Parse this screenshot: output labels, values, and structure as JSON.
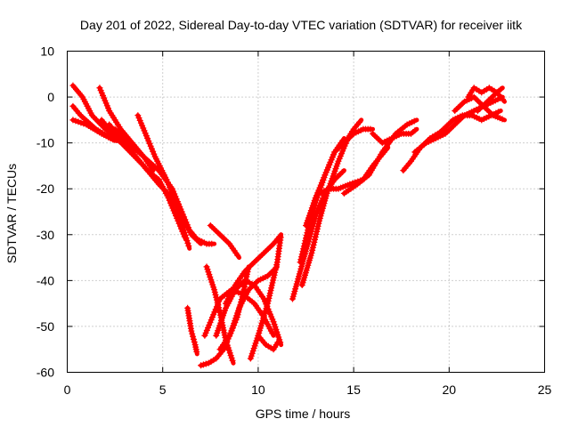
{
  "chart_data": {
    "type": "scatter",
    "title": "Day 201 of 2022, Sidereal Day-to-day VTEC variation (SDTVAR) for receiver iitk",
    "xlabel": "GPS time / hours",
    "ylabel": "SDTVAR / TECUs",
    "xlim": [
      0,
      25
    ],
    "ylim": [
      -60,
      10
    ],
    "xticks": [
      "0",
      "5",
      "10",
      "15",
      "20",
      "25"
    ],
    "yticks": [
      "10",
      "0",
      "-10",
      "-20",
      "-30",
      "-40",
      "-50",
      "-60"
    ],
    "grid": true,
    "marker": "plus",
    "color": "#ff0000",
    "series": [
      {
        "x": [
          0.3,
          0.8,
          1.3,
          2.0,
          2.6,
          3.2
        ],
        "y": [
          2.5,
          0,
          -4,
          -7,
          -9,
          -11
        ]
      },
      {
        "x": [
          0.3,
          0.7,
          1.5,
          2.3,
          3.0
        ],
        "y": [
          -2,
          -4,
          -7,
          -9,
          -10
        ]
      },
      {
        "x": [
          0.3,
          1.0,
          1.8,
          2.5
        ],
        "y": [
          -5,
          -6,
          -8,
          -9.5
        ]
      },
      {
        "x": [
          1.7,
          2.2,
          2.8,
          3.4,
          4.0,
          4.5
        ],
        "y": [
          2,
          -3,
          -7,
          -10,
          -13,
          -16
        ]
      },
      {
        "x": [
          2.5,
          3.2,
          4.0,
          4.8,
          5.5,
          6.0,
          6.4,
          6.8,
          7.3,
          7.7
        ],
        "y": [
          -7,
          -10,
          -13,
          -16,
          -20,
          -25,
          -29,
          -31,
          -32,
          -32
        ]
      },
      {
        "x": [
          1.8,
          2.6,
          3.3,
          4.0,
          4.8,
          5.5,
          6.0,
          6.5,
          7.0
        ],
        "y": [
          -5,
          -9,
          -12,
          -15,
          -19,
          -22,
          -26,
          -30,
          -32
        ]
      },
      {
        "x": [
          2.2,
          3.0,
          3.6,
          4.2,
          4.8,
          5.3,
          5.8,
          6.2
        ],
        "y": [
          -6,
          -10,
          -13,
          -16,
          -18,
          -22,
          -27,
          -31
        ]
      },
      {
        "x": [
          3.7,
          4.2,
          4.6,
          5.2,
          5.7,
          6.1,
          6.4
        ],
        "y": [
          -4,
          -9,
          -13,
          -18,
          -23,
          -29,
          -33
        ]
      },
      {
        "x": [
          7.5,
          8.0,
          8.5,
          9.0
        ],
        "y": [
          -28,
          -30,
          -32,
          -35
        ]
      },
      {
        "x": [
          6.3,
          6.5,
          6.7,
          6.8
        ],
        "y": [
          -46,
          -51,
          -54,
          -56
        ]
      },
      {
        "x": [
          7.0,
          7.4,
          7.8,
          8.2,
          8.6,
          9.0,
          9.5,
          10.0,
          10.5,
          11.0
        ],
        "y": [
          -58.5,
          -58,
          -57,
          -55,
          -51,
          -46,
          -42,
          -40,
          -39,
          -37
        ]
      },
      {
        "x": [
          7.3,
          7.7,
          8.0,
          8.3,
          8.7
        ],
        "y": [
          -37,
          -42,
          -47,
          -53,
          -58
        ]
      },
      {
        "x": [
          7.2,
          7.6,
          8.0,
          8.6,
          9.2,
          9.8,
          10.3,
          10.8
        ],
        "y": [
          -52,
          -48,
          -44,
          -42,
          -43,
          -45,
          -48,
          -52
        ]
      },
      {
        "x": [
          7.8,
          8.3,
          8.8,
          9.3,
          9.8,
          10.3,
          10.8,
          11.2
        ],
        "y": [
          -52,
          -46,
          -42,
          -40,
          -41,
          -44,
          -49,
          -54
        ]
      },
      {
        "x": [
          8.3,
          8.8,
          9.3,
          9.8,
          10.3,
          10.8,
          11.2
        ],
        "y": [
          -45,
          -41,
          -38,
          -36,
          -34,
          -32,
          -30
        ]
      },
      {
        "x": [
          8.0,
          8.5,
          8.9,
          9.2,
          9.5
        ],
        "y": [
          -55,
          -52,
          -48,
          -43,
          -37
        ]
      },
      {
        "x": [
          9.6,
          10.0,
          10.5,
          11.0,
          11.2
        ],
        "y": [
          -57,
          -52,
          -45,
          -36,
          -30
        ]
      },
      {
        "x": [
          10.0,
          10.4,
          10.8,
          11.1
        ],
        "y": [
          -52,
          -54,
          -55,
          -53
        ]
      },
      {
        "x": [
          11.8,
          12.2,
          12.6,
          13.0,
          13.5,
          14.0,
          14.5
        ],
        "y": [
          -44,
          -38,
          -32,
          -26,
          -21,
          -18,
          -16
        ]
      },
      {
        "x": [
          12.2,
          12.6,
          13.0,
          13.5,
          14.0,
          14.5,
          15.0,
          15.5,
          16.0
        ],
        "y": [
          -36,
          -29,
          -23,
          -17,
          -12,
          -10,
          -8,
          -7,
          -7
        ]
      },
      {
        "x": [
          12.5,
          13.0,
          13.5,
          14.0,
          14.5
        ],
        "y": [
          -28,
          -22,
          -17,
          -12,
          -9
        ]
      },
      {
        "x": [
          12.3,
          12.8,
          13.2,
          13.6,
          14.2,
          14.7,
          15.0,
          15.4
        ],
        "y": [
          -41,
          -34,
          -27,
          -21,
          -14,
          -9,
          -7,
          -5
        ]
      },
      {
        "x": [
          13.2,
          13.7,
          14.2,
          14.8,
          15.5,
          16.0,
          16.4,
          16.8
        ],
        "y": [
          -21,
          -20,
          -20,
          -19,
          -18,
          -15,
          -13,
          -11
        ]
      },
      {
        "x": [
          14.5,
          15.2,
          15.8,
          16.5,
          17.2,
          17.8,
          18.3
        ],
        "y": [
          -21,
          -19,
          -17,
          -12,
          -8,
          -6,
          -5
        ]
      },
      {
        "x": [
          16.0,
          16.5,
          17.0,
          17.5,
          18.0,
          18.3
        ],
        "y": [
          -8,
          -10,
          -9,
          -8,
          -8,
          -7
        ]
      },
      {
        "x": [
          17.6,
          18.0,
          18.5,
          19.0,
          19.4,
          19.8
        ],
        "y": [
          -16,
          -14,
          -11,
          -9,
          -8,
          -7
        ]
      },
      {
        "x": [
          18.2,
          18.8,
          19.3,
          19.8,
          20.3,
          20.8,
          21.3,
          21.8,
          22.3,
          22.8
        ],
        "y": [
          -12,
          -10,
          -9,
          -8,
          -6,
          -4,
          -3,
          -2,
          -1,
          0
        ]
      },
      {
        "x": [
          19.2,
          19.7,
          20.2,
          20.7,
          21.2,
          21.7,
          22.2,
          22.7
        ],
        "y": [
          -9,
          -7,
          -5,
          -4,
          -4,
          -5,
          -4,
          -3
        ]
      },
      {
        "x": [
          20.3,
          20.8,
          21.3,
          21.8,
          22.3,
          22.9
        ],
        "y": [
          -3,
          -1,
          0,
          -2,
          -4,
          -5
        ]
      },
      {
        "x": [
          21.0,
          21.3,
          21.7,
          22.1,
          22.5,
          22.8
        ],
        "y": [
          0,
          2,
          1,
          2,
          1,
          2
        ]
      },
      {
        "x": [
          21.5,
          22.0,
          22.5,
          22.9
        ],
        "y": [
          -3,
          -1,
          1,
          -1
        ]
      }
    ]
  }
}
